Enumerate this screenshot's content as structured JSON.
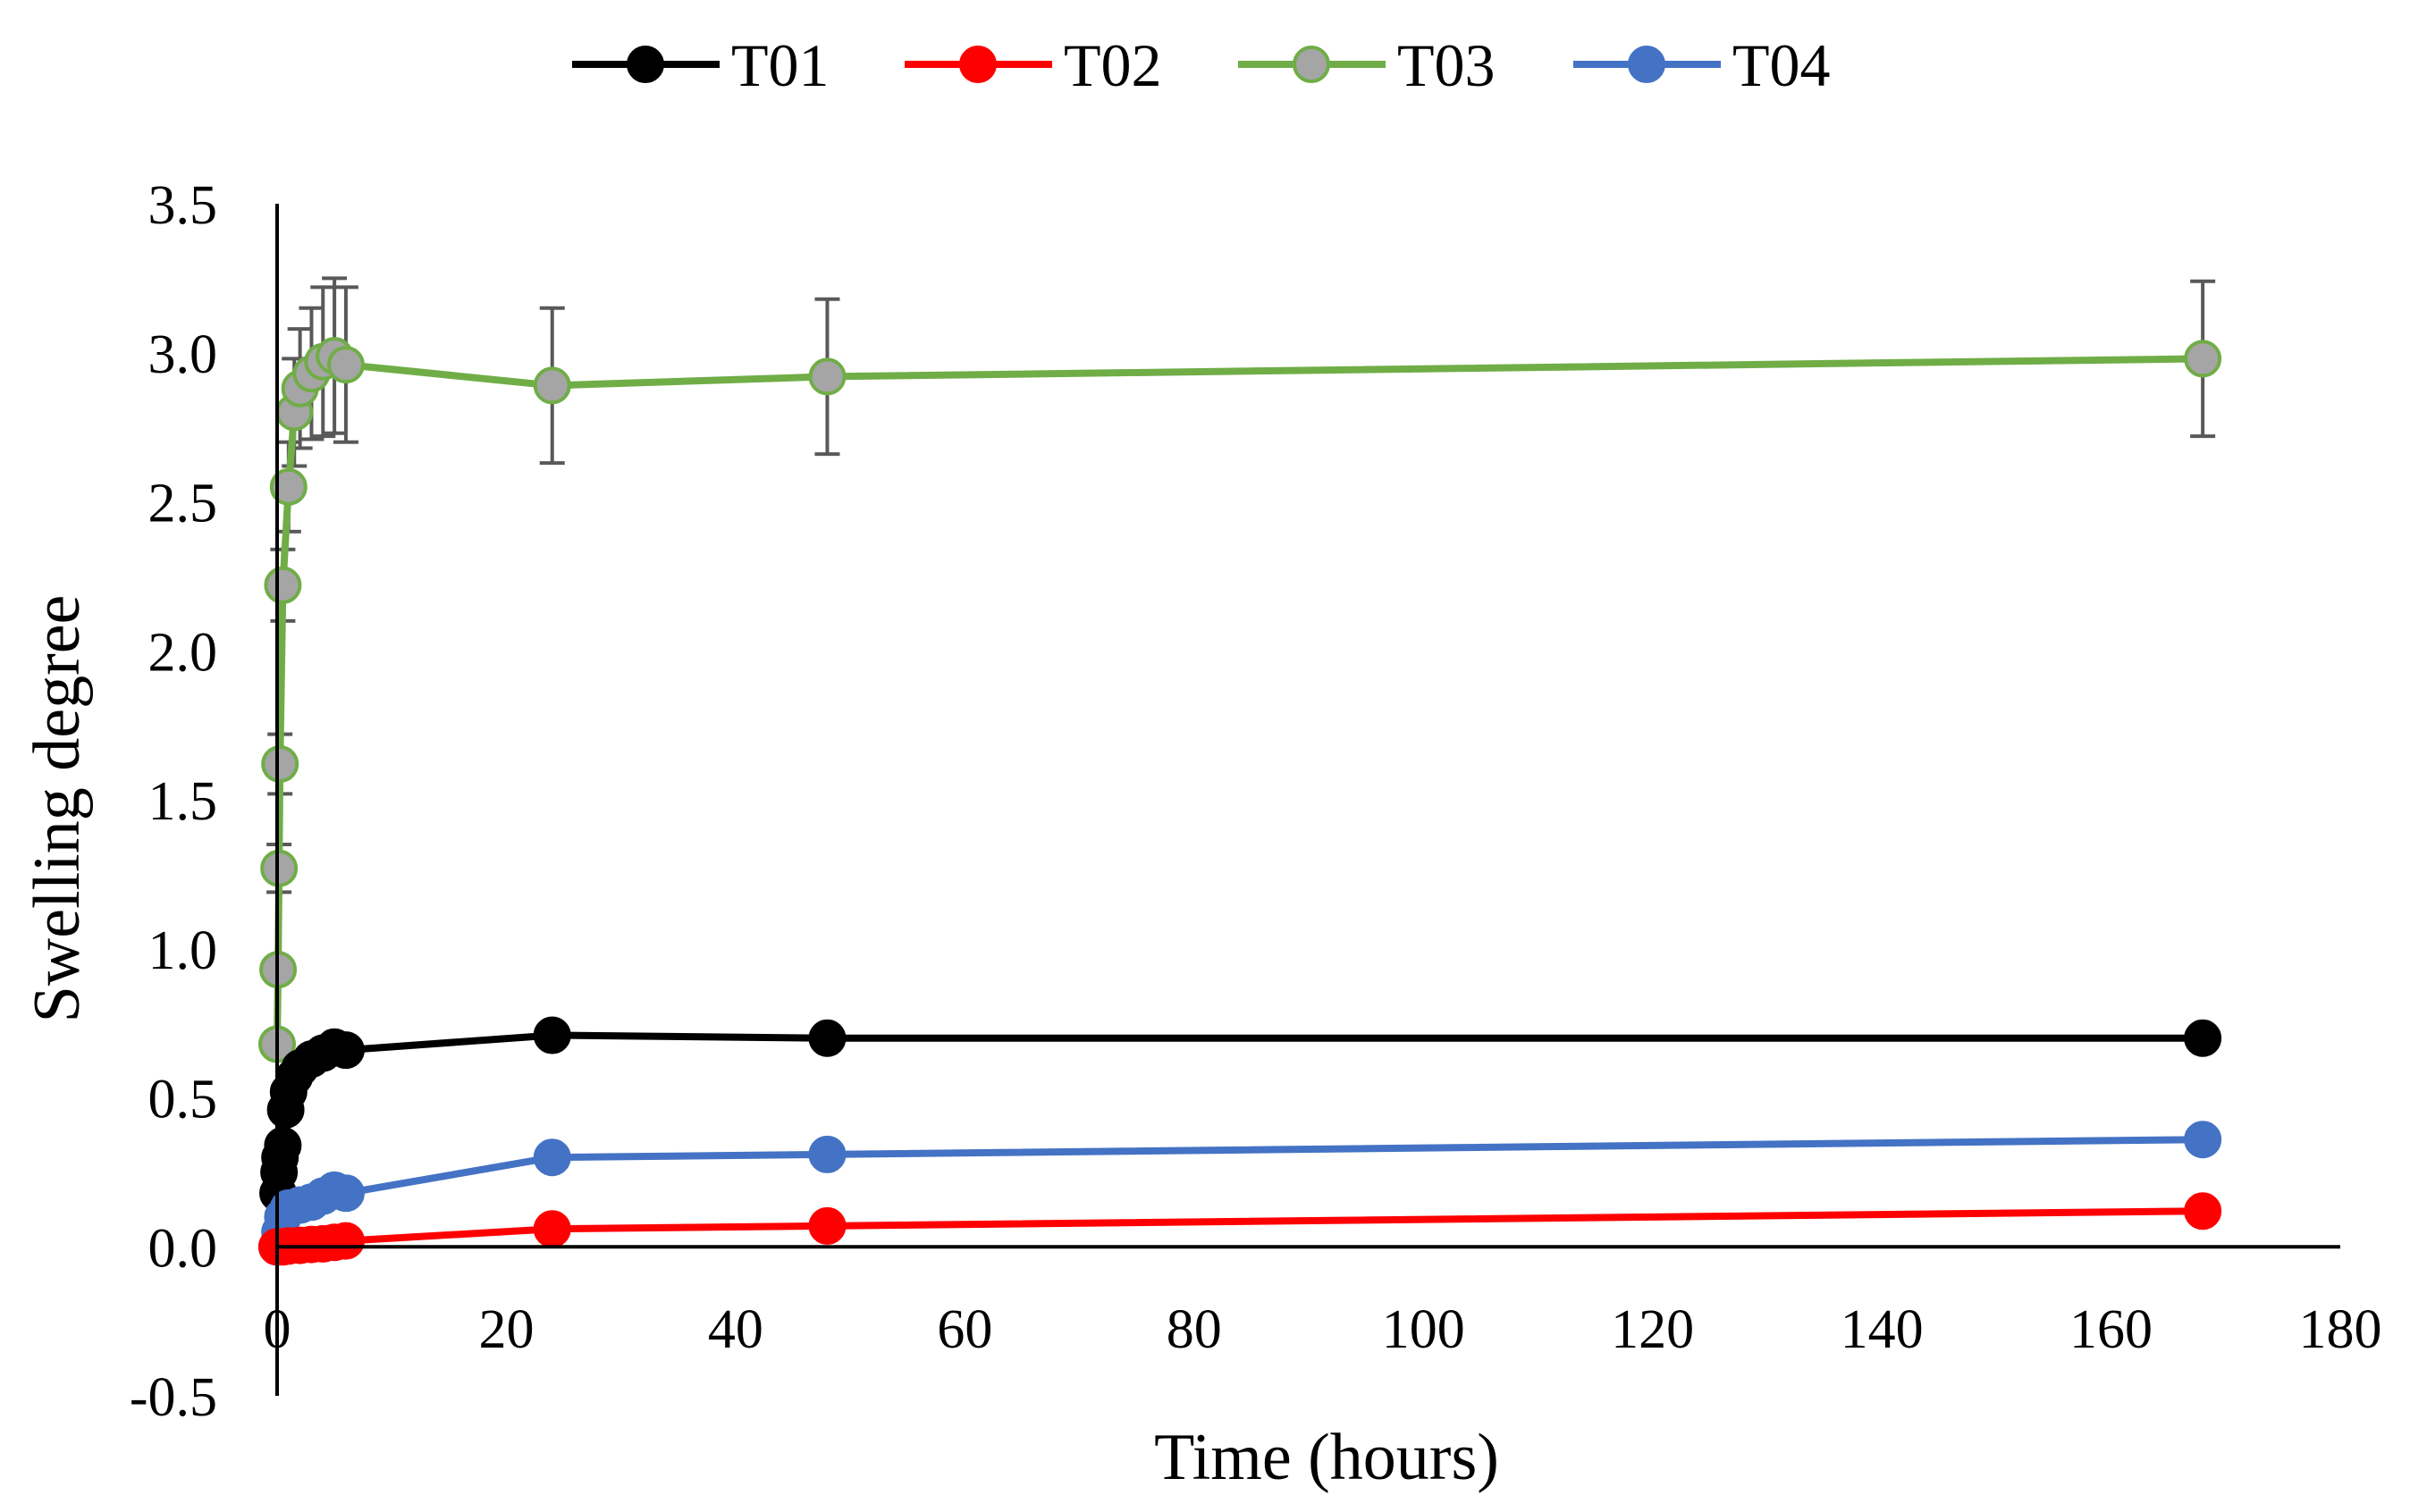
{
  "chart_data": {
    "type": "line",
    "title": "",
    "xlabel": "Time (hours)",
    "ylabel": "Swelling degree",
    "xlim": [
      0,
      180
    ],
    "ylim": [
      -0.5,
      3.5
    ],
    "xticks": [
      0,
      20,
      40,
      60,
      80,
      100,
      120,
      140,
      160,
      180
    ],
    "xtick_labels": [
      "0",
      "20",
      "40",
      "60",
      "80",
      "100",
      "120",
      "140",
      "160",
      "180"
    ],
    "yticks": [
      -0.5,
      0.0,
      0.5,
      1.0,
      1.5,
      2.0,
      2.5,
      3.0,
      3.5
    ],
    "ytick_labels": [
      "-0.5",
      "0.0",
      "0.5",
      "1.0",
      "1.5",
      "2.0",
      "2.5",
      "3.0",
      "3.5"
    ],
    "grid": false,
    "legend_position": "top-center",
    "series": [
      {
        "name": "T01",
        "line_color": "#000000",
        "marker_fill": "#000000",
        "marker_edge": "#000000",
        "x": [
          0,
          0.083,
          0.167,
          0.25,
          0.5,
          0.75,
          1,
          1.5,
          2,
          3,
          4,
          5,
          6,
          24,
          48,
          168
        ],
        "y": [
          0.0,
          0.18,
          0.25,
          0.3,
          0.34,
          0.46,
          0.52,
          0.57,
          0.6,
          0.63,
          0.65,
          0.67,
          0.66,
          0.71,
          0.7,
          0.7
        ],
        "err": [
          0,
          0,
          0,
          0,
          0,
          0,
          0,
          0,
          0,
          0,
          0,
          0,
          0,
          0,
          0,
          0
        ]
      },
      {
        "name": "T02",
        "line_color": "#ff0000",
        "marker_fill": "#ff0000",
        "marker_edge": "#ff0000",
        "x": [
          0,
          0.5,
          1,
          2,
          3,
          4,
          5,
          6,
          24,
          48,
          168
        ],
        "y": [
          0.0,
          0.0,
          0.003,
          0.005,
          0.008,
          0.01,
          0.015,
          0.02,
          0.06,
          0.07,
          0.12
        ],
        "err": [
          0,
          0,
          0,
          0,
          0,
          0,
          0,
          0,
          0,
          0,
          0
        ]
      },
      {
        "name": "T03",
        "line_color": "#70ad47",
        "marker_fill": "#a5a5a5",
        "marker_edge": "#70ad47",
        "x": [
          0,
          0.083,
          0.167,
          0.25,
          0.5,
          1,
          1.5,
          2,
          3,
          4,
          5,
          6,
          24,
          48,
          168
        ],
        "y": [
          0.68,
          0.93,
          1.27,
          1.62,
          2.22,
          2.55,
          2.8,
          2.88,
          2.93,
          2.97,
          2.99,
          2.96,
          2.89,
          2.92,
          2.98
        ],
        "err": [
          0,
          0,
          0.08,
          0.1,
          0.12,
          0.15,
          0.18,
          0.2,
          0.22,
          0.25,
          0.26,
          0.26,
          0.26,
          0.26,
          0.26
        ]
      },
      {
        "name": "T04",
        "line_color": "#4472c4",
        "marker_fill": "#4472c4",
        "marker_edge": "#4472c4",
        "x": [
          0,
          0.25,
          0.5,
          1,
          2,
          3,
          4,
          5,
          6,
          24,
          48,
          168
        ],
        "y": [
          0.0,
          0.05,
          0.1,
          0.13,
          0.14,
          0.15,
          0.17,
          0.19,
          0.18,
          0.3,
          0.31,
          0.36
        ],
        "err": [
          0,
          0,
          0,
          0,
          0,
          0,
          0,
          0,
          0,
          0,
          0,
          0
        ]
      }
    ]
  }
}
